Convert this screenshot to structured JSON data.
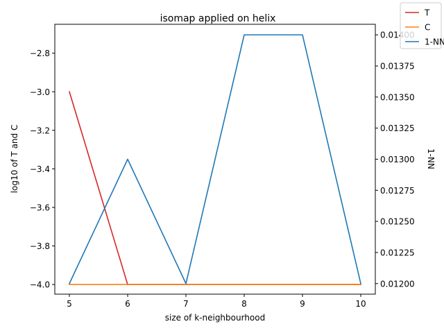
{
  "chart_data": {
    "type": "line",
    "title": "isomap applied on helix",
    "xlabel": "size of k-neighbourhood",
    "ylabel_left": "log10 of T and C",
    "ylabel_right": "1-NN",
    "x": [
      5,
      6,
      7,
      8,
      9,
      10
    ],
    "x_ticks": [
      "5",
      "6",
      "7",
      "8",
      "9",
      "10"
    ],
    "xlim": [
      4.75,
      10.25
    ],
    "ylim_left": [
      -4.05,
      -2.65
    ],
    "ylim_right": [
      0.011915,
      0.014085
    ],
    "y_ticks_left": [
      "−4.0",
      "−3.8",
      "−3.6",
      "−3.4",
      "−3.2",
      "−3.0",
      "−2.8"
    ],
    "y_ticks_right": [
      "0.01200",
      "0.01225",
      "0.01250",
      "0.01275",
      "0.01300",
      "0.01325",
      "0.01350",
      "0.01375",
      "0.01400"
    ],
    "grid": false,
    "legend_position": "top-right",
    "series": [
      {
        "name": "T",
        "axis": "left",
        "color": "#d62728",
        "values": [
          -3.0,
          -4.0,
          -4.0,
          -4.0,
          -4.0,
          -4.0
        ]
      },
      {
        "name": "C",
        "axis": "left",
        "color": "#ff7f0e",
        "values": [
          -4.0,
          -4.0,
          -4.0,
          -4.0,
          -4.0,
          -4.0
        ]
      },
      {
        "name": "1-NN",
        "axis": "right",
        "color": "#1f77b4",
        "values": [
          0.012,
          0.013,
          0.012,
          0.014,
          0.014,
          0.012
        ]
      }
    ]
  }
}
